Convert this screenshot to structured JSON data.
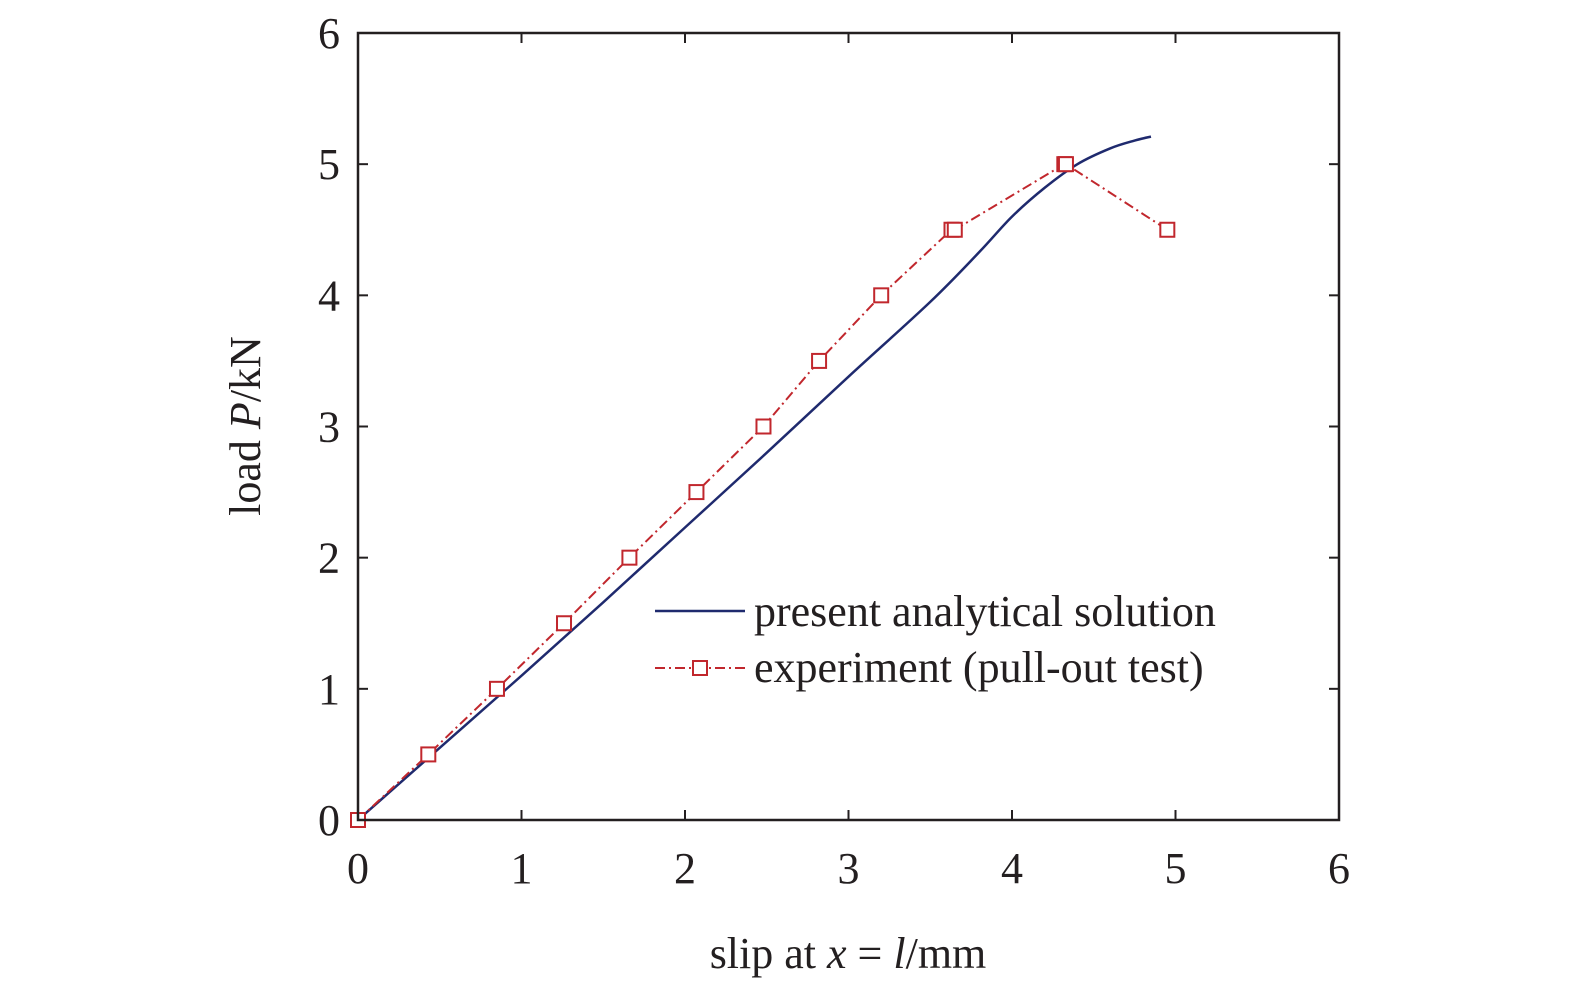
{
  "chart_data": {
    "type": "line",
    "xlabel": {
      "prefix": "slip at ",
      "var1": "x",
      "mid": " = ",
      "var2": "l",
      "suffix": "/mm"
    },
    "ylabel": {
      "prefix": "load ",
      "var": "P",
      "suffix": "/kN"
    },
    "xlim": [
      0,
      6
    ],
    "ylim": [
      0,
      6
    ],
    "xticks": [
      "0",
      "1",
      "2",
      "3",
      "4",
      "5",
      "6"
    ],
    "yticks": [
      "0",
      "1",
      "2",
      "3",
      "4",
      "5",
      "6"
    ],
    "grid": false,
    "legend_position": "lower-right",
    "series": [
      {
        "name": "present analytical solution",
        "color": "#1f2a6e",
        "style": "solid",
        "marker": "none",
        "x": [
          0,
          0.5,
          1.0,
          1.5,
          2.0,
          2.5,
          3.0,
          3.5,
          3.8,
          4.0,
          4.2,
          4.4,
          4.6,
          4.75,
          4.85
        ],
        "y": [
          0,
          0.55,
          1.1,
          1.66,
          2.23,
          2.8,
          3.38,
          3.95,
          4.33,
          4.6,
          4.82,
          5.0,
          5.12,
          5.18,
          5.21
        ]
      },
      {
        "name": "experiment (pull-out test)",
        "color": "#c1272d",
        "style": "dashdot",
        "marker": "square",
        "x": [
          0.0,
          0.43,
          0.85,
          1.26,
          1.66,
          2.07,
          2.48,
          2.82,
          3.2,
          3.63,
          3.65,
          4.32,
          4.33,
          4.95
        ],
        "y": [
          0.0,
          0.5,
          1.0,
          1.5,
          2.0,
          2.5,
          3.0,
          3.5,
          4.0,
          4.5,
          4.5,
          5.0,
          5.0,
          4.5
        ]
      }
    ]
  }
}
